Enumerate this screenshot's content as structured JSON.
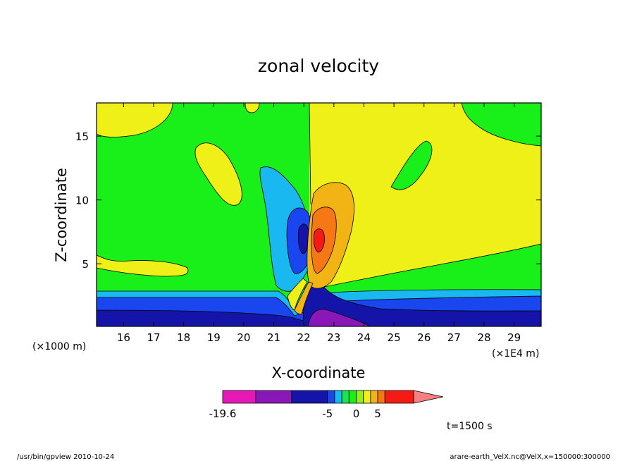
{
  "chart_data": {
    "type": "heatmap",
    "title": "zonal velocity",
    "xlabel": "X-coordinate",
    "ylabel": "Z-coordinate",
    "x_unit_label": "(×1E4 m)",
    "y_unit_label": "(×1000 m)",
    "xlim": [
      15.1,
      29.9
    ],
    "ylim": [
      0.1,
      17.6
    ],
    "x_ticks": [
      "16",
      "17",
      "18",
      "19",
      "20",
      "21",
      "22",
      "23",
      "24",
      "25",
      "26",
      "27",
      "28",
      "29"
    ],
    "x_tick_values": [
      16,
      17,
      18,
      19,
      20,
      21,
      22,
      23,
      24,
      25,
      26,
      27,
      28,
      29
    ],
    "y_ticks": [
      "5",
      "10",
      "15"
    ],
    "y_tick_values": [
      5,
      10,
      15
    ],
    "grid": false,
    "colorbar": {
      "min_label": "-19.6",
      "tick_labels": [
        {
          "level": -5,
          "label": "-5"
        },
        {
          "level": 0,
          "label": "0"
        },
        {
          "level": 5,
          "label": "5"
        }
      ],
      "levels": [
        -19.6,
        -15,
        -10,
        -5,
        -3,
        -2,
        -1,
        0,
        1,
        2,
        5,
        8,
        12
      ],
      "colors": [
        "#e619b8",
        "#8a18b8",
        "#1414a8",
        "#1a46f0",
        "#19b8f0",
        "#19e64c",
        "#19f019",
        "#94ee19",
        "#f0f019",
        "#f2b414",
        "#f57814",
        "#f51a14",
        "#f58080"
      ]
    },
    "time_label": "t=1500 s"
  },
  "footer": {
    "left": "/usr/bin/gpview  2010-10-24",
    "right": "arare-earth_VelX.nc@VelX,x=150000:300000"
  }
}
